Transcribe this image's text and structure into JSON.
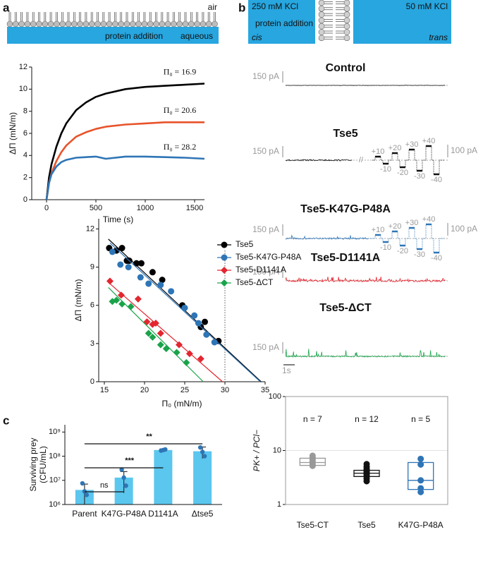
{
  "panel_labels": [
    "a",
    "b",
    "c"
  ],
  "diagram_a": {
    "top": "air",
    "middle": "protein addition",
    "bottom": "aqueous"
  },
  "diagram_b": {
    "left_top": "250 mM KCl",
    "left_middle": "protein addition",
    "left_bottom": "cis",
    "right_top": "50 mM KCl",
    "right_bottom": "trans"
  },
  "traces": {
    "time_scale": "1s",
    "items": [
      {
        "name": "Control",
        "color": "#111111",
        "scale": "150 pA"
      },
      {
        "name": "Tse5",
        "color": "#111111",
        "scale": "150 pA",
        "break": "//",
        "steps_up": [
          "+10",
          "+20",
          "+30",
          "+40"
        ],
        "steps_down": [
          "-10",
          "-20",
          "-30",
          "-40"
        ],
        "step_scale": "100 pA"
      },
      {
        "name": "Tse5-K47G-P48A",
        "color": "#2e75b6",
        "scale": "150 pA",
        "steps_up": [
          "+10",
          "+20",
          "+30",
          "+40"
        ],
        "steps_down": [
          "-10",
          "-20",
          "-30",
          "-40"
        ],
        "step_scale": "100 pA"
      },
      {
        "name": "Tse5-D1141A",
        "color": "#e3262f",
        "scale": "150 pA"
      },
      {
        "name": "Tse5-ΔCT",
        "color": "#1aa34a",
        "scale": "150 pA"
      }
    ]
  },
  "chart_data": [
    {
      "type": "line",
      "xlabel": "Time (s)",
      "ylabel": "ΔΠ (mN/m)",
      "x": [
        0,
        25,
        50,
        100,
        150,
        200,
        300,
        400,
        500,
        600,
        800,
        1000,
        1200,
        1400,
        1600
      ],
      "series": [
        {
          "name": "Π₀ = 16.9",
          "color": "#000000",
          "values": [
            0,
            2.0,
            3.2,
            4.8,
            6.0,
            6.9,
            8.1,
            8.8,
            9.3,
            9.6,
            10.0,
            10.2,
            10.3,
            10.4,
            10.5
          ]
        },
        {
          "name": "Π₀ = 20.6",
          "color": "#e8532b",
          "values": [
            0,
            1.5,
            2.4,
            3.5,
            4.3,
            4.9,
            5.7,
            6.1,
            6.4,
            6.6,
            6.8,
            6.9,
            7.0,
            7.0,
            7.0
          ]
        },
        {
          "name": "Π₀ = 28.2",
          "color": "#2e75b6",
          "values": [
            0,
            1.5,
            2.3,
            3.0,
            3.4,
            3.6,
            3.8,
            3.85,
            3.9,
            3.7,
            3.9,
            3.9,
            3.85,
            3.8,
            3.7
          ]
        }
      ],
      "xlim": [
        -150,
        1600
      ],
      "xticks": [
        0,
        500,
        1000,
        1500
      ],
      "ylim": [
        0,
        12
      ],
      "yticks": [
        0,
        2,
        4,
        6,
        8,
        10,
        12
      ]
    },
    {
      "type": "scatter",
      "xlabel": "Π₀ (mN/m)",
      "ylabel": "ΔΠ (mN/m)",
      "legend": "upper right",
      "ref_x": 30,
      "xlim": [
        14.3,
        35
      ],
      "xticks": [
        15,
        20,
        25,
        30,
        35
      ],
      "ylim": [
        0,
        12.8
      ],
      "yticks": [
        0,
        3,
        6,
        9,
        12
      ],
      "series": [
        {
          "name": "Tse5",
          "color": "#000000",
          "marker": "circle",
          "x": [
            15.6,
            16.5,
            17.2,
            17.8,
            18.1,
            19.0,
            19.6,
            21.0,
            22.2,
            24.7,
            27.0,
            27.5,
            29.2
          ],
          "values": [
            10.5,
            10.3,
            10.5,
            9.5,
            9.5,
            9.3,
            9.3,
            8.6,
            8.0,
            6.0,
            4.3,
            4.7,
            3.2
          ],
          "fit_x": [
            15.5,
            34.5
          ],
          "fit_y": [
            11.2,
            0
          ]
        },
        {
          "name": "Tse5-K47G-P48A",
          "color": "#2e75b6",
          "marker": "circle",
          "x": [
            16.0,
            17.0,
            18.0,
            19.5,
            20.5,
            22.0,
            23.3,
            25.0,
            26.2,
            26.7,
            27.7,
            28.7
          ],
          "values": [
            10.2,
            9.2,
            9.0,
            8.2,
            7.7,
            7.6,
            7.1,
            5.8,
            5.2,
            4.6,
            3.7,
            3.1
          ],
          "fit_x": [
            15.7,
            34.4
          ],
          "fit_y": [
            10.9,
            0
          ]
        },
        {
          "name": "Tse5-D1141A",
          "color": "#e3262f",
          "marker": "diamond",
          "x": [
            15.7,
            17.1,
            19.2,
            20.3,
            21.0,
            21.4,
            22.0,
            24.3,
            25.6,
            27.0
          ],
          "values": [
            7.9,
            6.8,
            6.5,
            4.7,
            4.5,
            4.6,
            3.8,
            2.9,
            2.2,
            1.8
          ],
          "fit_x": [
            15.5,
            29.7
          ],
          "fit_y": [
            7.8,
            0
          ]
        },
        {
          "name": "Tse5-ΔCT",
          "color": "#1aa34a",
          "marker": "diamond",
          "x": [
            16.0,
            16.5,
            17.2,
            18.3,
            20.5,
            21.0,
            22.0,
            22.7,
            24.0,
            25.2
          ],
          "values": [
            6.3,
            6.4,
            6.1,
            5.9,
            3.8,
            3.5,
            2.9,
            2.6,
            2.3,
            1.5
          ],
          "fit_x": [
            15.5,
            27.3
          ],
          "fit_y": [
            7.4,
            0
          ]
        }
      ]
    },
    {
      "type": "bar",
      "log": true,
      "ylabel": [
        "Surviving prey",
        "(CFU/mL)"
      ],
      "categories": [
        "Parent",
        "K47G-P48A",
        "D1141A",
        "Δtse5"
      ],
      "values": [
        4000000,
        13000000,
        180000000,
        160000000
      ],
      "errors": [
        3000000,
        10000000,
        20000000,
        80000000
      ],
      "points": [
        [
          7500000,
          3500000,
          2500000
        ],
        [
          28000000,
          13000000,
          6000000
        ],
        [
          170000000,
          180000000,
          190000000
        ],
        [
          230000000,
          150000000,
          100000000
        ]
      ],
      "color": "#5bc6ee",
      "point_color": "#2e75b6",
      "ylim": [
        1000000,
        2000000000
      ],
      "yticks": [
        {
          "value": 1000000,
          "label": "10⁶"
        },
        {
          "value": 10000000,
          "label": "10⁷"
        },
        {
          "value": 100000000,
          "label": "10⁸"
        },
        {
          "value": 1000000000,
          "label": "10⁹"
        }
      ],
      "significance": [
        {
          "label": "ns",
          "from": 0,
          "to": 1
        },
        {
          "label": "***",
          "from": 0,
          "to": 2
        },
        {
          "label": "**",
          "from": 0,
          "to": 3
        }
      ]
    },
    {
      "type": "box",
      "log": true,
      "ylabel": "PK+ / PCl−",
      "categories": [
        "Tse5-CT",
        "Tse5",
        "K47G-P48A"
      ],
      "n_labels": [
        "n = 7",
        "n = 12",
        "n = 5"
      ],
      "colors": [
        "#999999",
        "#111111",
        "#2e75b6"
      ],
      "q1": [
        5.3,
        3.3,
        1.9
      ],
      "median": [
        6.0,
        3.8,
        2.8
      ],
      "q3": [
        7.2,
        4.3,
        6.0
      ],
      "points": [
        [
          5.2,
          5.6,
          6.0,
          6.3,
          6.8,
          7.4,
          8.0
        ],
        [
          2.7,
          3.0,
          3.3,
          3.5,
          3.7,
          3.8,
          3.9,
          4.1,
          4.3,
          4.6,
          5.0,
          5.6
        ],
        [
          1.7,
          2.0,
          2.8,
          5.5,
          7.0
        ]
      ],
      "ylim": [
        1,
        100
      ],
      "yticks": [
        1,
        10,
        100
      ],
      "grid": true
    }
  ]
}
